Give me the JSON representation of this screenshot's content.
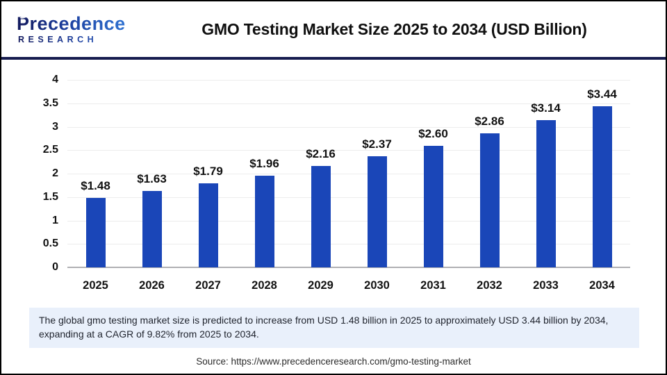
{
  "header": {
    "logo_line1": "Precedence",
    "logo_line2": "RESEARCH",
    "title": "GMO Testing Market Size 2025 to 2034 (USD Billion)"
  },
  "chart_data": {
    "type": "bar",
    "title": "GMO Testing Market Size 2025 to 2034 (USD Billion)",
    "categories": [
      "2025",
      "2026",
      "2027",
      "2028",
      "2029",
      "2030",
      "2031",
      "2032",
      "2033",
      "2034"
    ],
    "values": [
      1.48,
      1.63,
      1.79,
      1.96,
      2.16,
      2.37,
      2.6,
      2.86,
      3.14,
      3.44
    ],
    "value_labels": [
      "$1.48",
      "$1.63",
      "$1.79",
      "$1.96",
      "$2.16",
      "$2.37",
      "$2.60",
      "$2.86",
      "$3.14",
      "$3.44"
    ],
    "xlabel": "",
    "ylabel": "",
    "ylim": [
      0,
      4
    ],
    "yticks": [
      0,
      0.5,
      1,
      1.5,
      2,
      2.5,
      3,
      3.5,
      4
    ],
    "grid": true,
    "legend": "none",
    "bar_color": "#1a46b8",
    "grid_color": "#ececec",
    "baseline_color": "#b0b0b3"
  },
  "footer": {
    "summary": "The global gmo testing market size is predicted to increase from USD 1.48 billion in 2025 to approximately USD 3.44 billion by 2034, expanding at a CAGR of 9.82% from 2025 to 2034.",
    "source": "Source: https://www.precedenceresearch.com/gmo-testing-market"
  }
}
